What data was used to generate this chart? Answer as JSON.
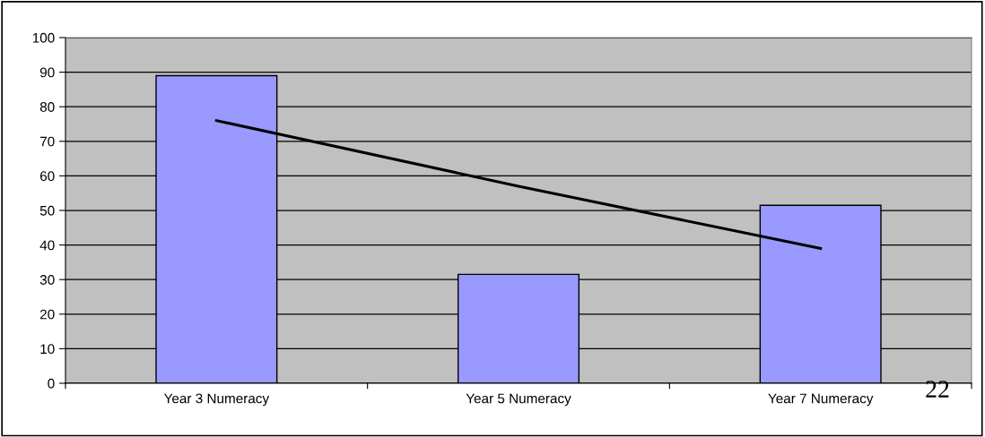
{
  "chart_data": {
    "type": "bar",
    "categories": [
      "Year 3 Numeracy",
      "Year 5 Numeracy",
      "Year 7 Numeracy"
    ],
    "series": [
      {
        "color": "#9999ff",
        "values": [
          89,
          31.5,
          51.5
        ]
      },
      {
        "type": "line",
        "color": "#000000",
        "values": [
          76,
          57,
          39
        ]
      }
    ],
    "ylim": [
      0,
      100
    ],
    "yticks": [
      0,
      10,
      20,
      30,
      40,
      50,
      60,
      70,
      80,
      90,
      100
    ],
    "grid": "y",
    "legend": false,
    "marker": "none",
    "line_style": "solid",
    "annotations": [
      "22"
    ]
  }
}
